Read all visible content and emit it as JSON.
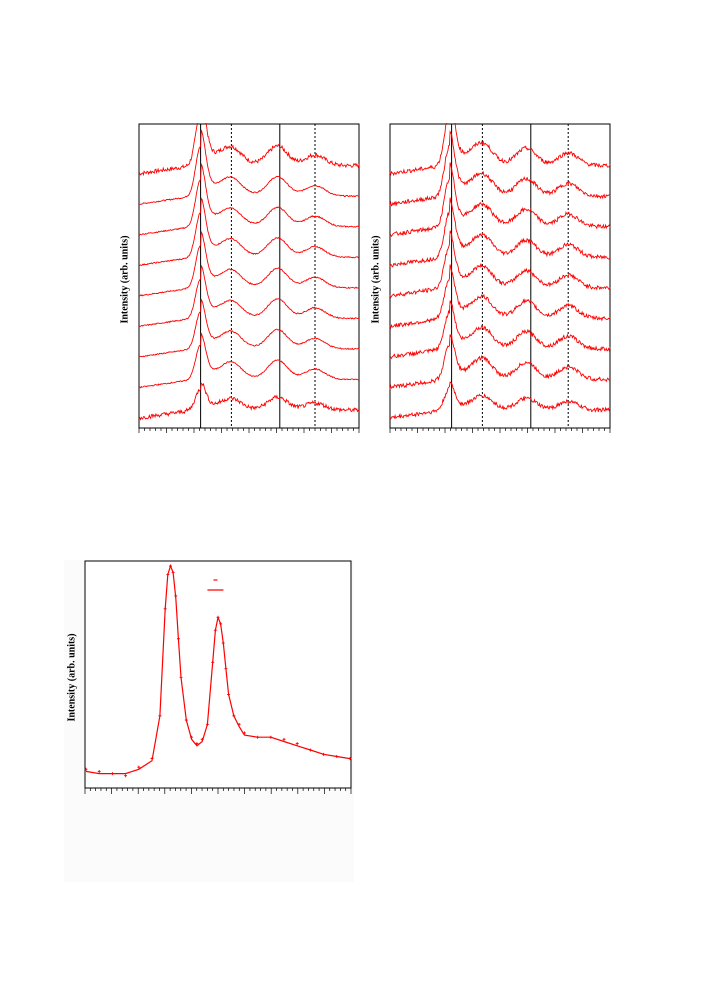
{
  "colors": {
    "trace": "#ff0000",
    "frame": "#000000",
    "background": "#ffffff"
  },
  "panels": {
    "top_left": {
      "ylabel": "Intensity (arb. units)"
    },
    "top_right": {
      "ylabel": "Intensity (arb. units)"
    },
    "bottom": {
      "ylabel": "Intensity (arb. units)"
    }
  },
  "chart_data": [
    {
      "type": "line",
      "title": "",
      "xlabel": "",
      "ylabel": "Intensity (arb. units)",
      "note": "Nine vertically offset spectra; solid and dashed vertical reference lines; tick labels not legible",
      "xlim": [
        0,
        100
      ],
      "x_minor_ticks": 40,
      "reference_lines": [
        {
          "x": 28,
          "style": "solid"
        },
        {
          "x": 42,
          "style": "dashed"
        },
        {
          "x": 64,
          "style": "solid"
        },
        {
          "x": 80,
          "style": "dashed"
        }
      ],
      "series_count": 9,
      "peaks": [
        {
          "x": 28,
          "relative_height": 1.0
        },
        {
          "x": 42,
          "relative_height": 0.35
        },
        {
          "x": 63,
          "relative_height": 0.45
        },
        {
          "x": 80,
          "relative_height": 0.25
        }
      ]
    },
    {
      "type": "line",
      "title": "",
      "xlabel": "",
      "ylabel": "Intensity (arb. units)",
      "note": "Nine vertically offset spectra; solid and dashed vertical reference lines; tick labels not legible",
      "xlim": [
        0,
        100
      ],
      "x_minor_ticks": 40,
      "reference_lines": [
        {
          "x": 28,
          "style": "solid"
        },
        {
          "x": 42,
          "style": "dashed"
        },
        {
          "x": 64,
          "style": "solid"
        },
        {
          "x": 81,
          "style": "dashed"
        }
      ],
      "series_count": 9,
      "peaks": [
        {
          "x": 27,
          "relative_height": 1.0
        },
        {
          "x": 42,
          "relative_height": 0.45
        },
        {
          "x": 62,
          "relative_height": 0.4
        },
        {
          "x": 81,
          "relative_height": 0.3
        }
      ]
    },
    {
      "type": "line",
      "title": "",
      "xlabel": "",
      "ylabel": "Intensity (arb. units)",
      "note": "Measured data (markers) with fitted curve; legend present but text not legible",
      "xlim": [
        0,
        100
      ],
      "ylim": [
        0,
        100
      ],
      "x_minor_ticks": 50,
      "legend": "top-center",
      "series": [
        {
          "style": "markers",
          "x": [
            0,
            5,
            10,
            15,
            20,
            25,
            28,
            30,
            31,
            32,
            33,
            34,
            35,
            36,
            38,
            40,
            42,
            44,
            46,
            48,
            49,
            50,
            51,
            52,
            53,
            54,
            56,
            58,
            60,
            65,
            70,
            75,
            80,
            85,
            90,
            95,
            100
          ],
          "values": [
            5,
            4,
            3,
            2,
            6,
            10,
            30,
            80,
            96,
            100,
            97,
            86,
            66,
            48,
            28,
            20,
            17,
            19,
            26,
            55,
            70,
            76,
            73,
            64,
            52,
            40,
            30,
            26,
            22,
            20,
            20,
            19,
            17,
            14,
            12,
            11,
            10
          ]
        },
        {
          "style": "line",
          "x": [
            0,
            5,
            10,
            15,
            20,
            25,
            28,
            30,
            31,
            32,
            33,
            34,
            35,
            36,
            38,
            40,
            42,
            44,
            46,
            48,
            49,
            50,
            51,
            52,
            53,
            54,
            56,
            58,
            60,
            65,
            70,
            75,
            80,
            85,
            90,
            95,
            100
          ],
          "values": [
            4,
            3,
            3,
            3,
            5,
            9,
            30,
            80,
            96,
            100,
            97,
            85,
            66,
            48,
            28,
            19,
            16,
            18,
            26,
            55,
            70,
            76,
            73,
            64,
            52,
            40,
            30,
            25,
            21,
            20,
            20,
            18,
            16,
            14,
            12,
            11,
            10
          ]
        }
      ]
    }
  ]
}
